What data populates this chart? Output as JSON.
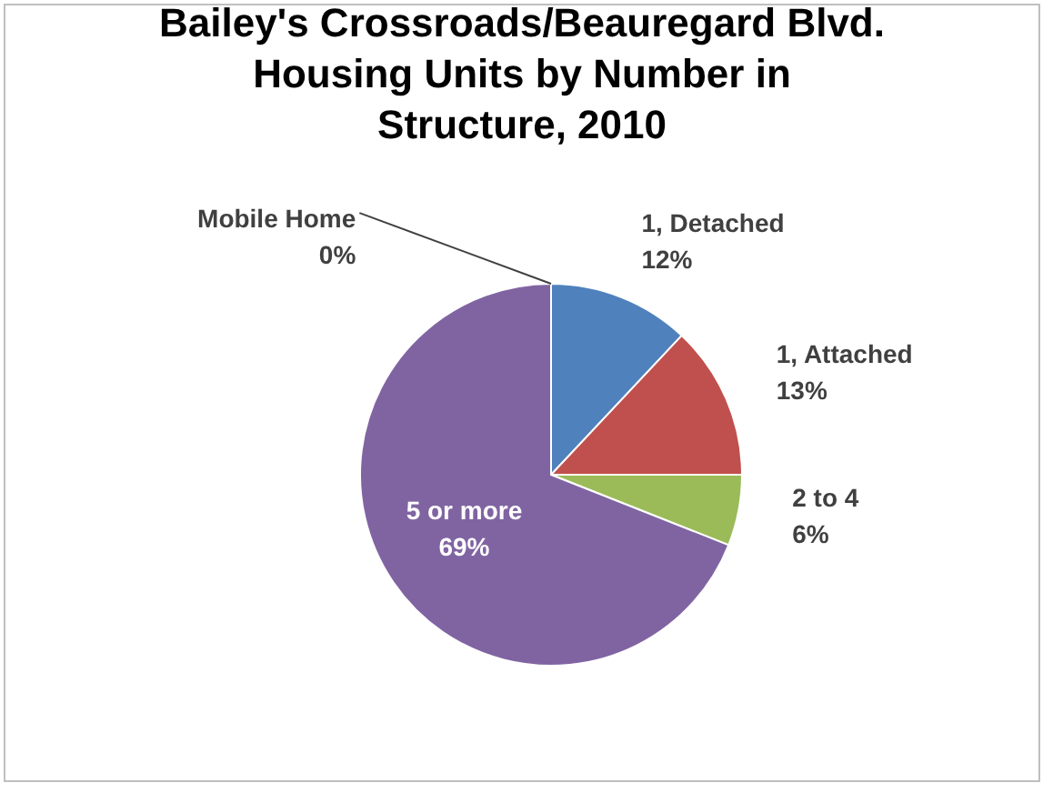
{
  "chart_data": {
    "type": "pie",
    "title": "Bailey's Crossroads/Beauregard Blvd. Housing Units by Number in Structure, 2010",
    "categories": [
      "Mobile Home",
      "1, Detached",
      "1, Attached",
      "2 to 4",
      "5 or more"
    ],
    "values": [
      0,
      12,
      13,
      6,
      69
    ],
    "colors": [
      "#4bacc6",
      "#4f81bd",
      "#c0504d",
      "#9bbb59",
      "#8064a2"
    ],
    "value_labels": [
      "0%",
      "12%",
      "13%",
      "6%",
      "69%"
    ]
  }
}
